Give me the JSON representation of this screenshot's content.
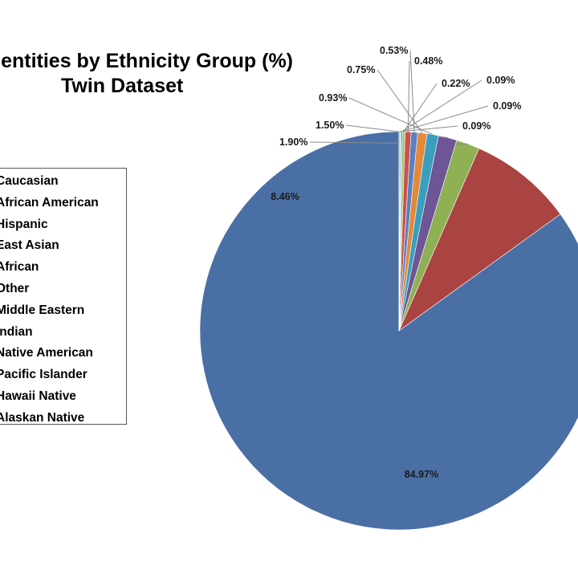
{
  "chart_data": {
    "type": "pie",
    "title_line1": "Identities by Ethnicity Group (%)",
    "title_line2": "Twin Dataset",
    "categories": [
      "Caucasian",
      "African American",
      "Hispanic",
      "East Asian",
      "African",
      "Other",
      "Middle Eastern",
      "Indian",
      "Native American",
      "Pacific Islander",
      "Hawaii Native",
      "Alaskan Native"
    ],
    "values": [
      84.97,
      8.46,
      1.9,
      1.5,
      0.93,
      0.75,
      0.53,
      0.48,
      0.22,
      0.09,
      0.09,
      0.09
    ],
    "labels": [
      "84.97%",
      "8.46%",
      "1.90%",
      "1.50%",
      "0.93%",
      "0.75%",
      "0.53%",
      "0.48%",
      "0.22%",
      "0.09%",
      "0.09%",
      "0.09%"
    ],
    "colors": [
      "#4a6fa5",
      "#a94442",
      "#8fb054",
      "#6e5595",
      "#3a9fbd",
      "#e2893a",
      "#5b7fc0",
      "#c9524e",
      "#a6c46a",
      "#8a6fb0",
      "#4fb3cf",
      "#f2a65a"
    ],
    "legend_position": "left",
    "direction": "counterclockwise",
    "start": "top"
  }
}
